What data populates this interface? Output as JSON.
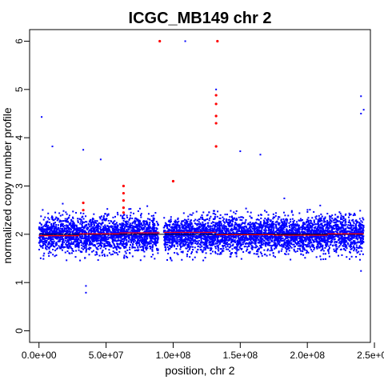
{
  "chart_data": {
    "type": "scatter",
    "title": "ICGC_MB149 chr 2",
    "xlabel": "position, chr 2",
    "ylabel": "normalized copy number profile",
    "xlim": [
      -7000000,
      247000000
    ],
    "ylim": [
      -0.24,
      6.24
    ],
    "x_ticks": [
      0,
      50000000,
      100000000,
      150000000,
      200000000,
      250000000
    ],
    "x_tick_labels": [
      "0.0e+00",
      "5.0e+07",
      "1.0e+08",
      "1.5e+08",
      "2.0e+08",
      "2.5e+08"
    ],
    "y_ticks": [
      0,
      1,
      2,
      3,
      4,
      5,
      6
    ],
    "y_tick_labels": [
      "0",
      "1",
      "2",
      "3",
      "4",
      "5",
      "6"
    ],
    "grid": false,
    "colors": {
      "points": "#0000ff",
      "outliers": "#ff0000",
      "segments": "#ff0000",
      "median_line": "#000000"
    },
    "segments": [
      {
        "x0": 0,
        "x1": 30000000,
        "y": 1.97
      },
      {
        "x0": 30000000,
        "x1": 60000000,
        "y": 2.01
      },
      {
        "x0": 60000000,
        "x1": 90000000,
        "y": 2.03
      },
      {
        "x0": 93000000,
        "x1": 132000000,
        "y": 2.04
      },
      {
        "x0": 132000000,
        "x1": 175000000,
        "y": 1.99
      },
      {
        "x0": 175000000,
        "x1": 215000000,
        "y": 1.98
      },
      {
        "x0": 215000000,
        "x1": 242000000,
        "y": 2.01
      }
    ],
    "median_line": {
      "x0": 0,
      "x1": 242000000,
      "y": 2.0
    },
    "bulk_points": {
      "x_start": 0,
      "x_end": 242000000,
      "gap": [
        89000000,
        93000000
      ],
      "center": 2.0,
      "spread": 0.3,
      "count": 6000
    },
    "outlier_points_blue": [
      {
        "x": 2000000,
        "y": 4.43
      },
      {
        "x": 10000000,
        "y": 3.82
      },
      {
        "x": 33000000,
        "y": 3.75
      },
      {
        "x": 35000000,
        "y": 0.93
      },
      {
        "x": 35000000,
        "y": 0.79
      },
      {
        "x": 46000000,
        "y": 3.55
      },
      {
        "x": 109000000,
        "y": 6.0
      },
      {
        "x": 132000000,
        "y": 5.0
      },
      {
        "x": 132000000,
        "y": 4.45
      },
      {
        "x": 150000000,
        "y": 3.72
      },
      {
        "x": 165000000,
        "y": 3.65
      },
      {
        "x": 240000000,
        "y": 4.86
      },
      {
        "x": 240000000,
        "y": 4.5
      },
      {
        "x": 242000000,
        "y": 4.58
      },
      {
        "x": 240000000,
        "y": 1.24
      }
    ],
    "outlier_points_red": [
      {
        "x": 90000000,
        "y": 6.0
      },
      {
        "x": 133000000,
        "y": 6.0
      },
      {
        "x": 132000000,
        "y": 4.88
      },
      {
        "x": 132000000,
        "y": 4.7
      },
      {
        "x": 132000000,
        "y": 4.45
      },
      {
        "x": 132000000,
        "y": 4.3
      },
      {
        "x": 132000000,
        "y": 3.82
      },
      {
        "x": 100000000,
        "y": 3.1
      },
      {
        "x": 33000000,
        "y": 2.65
      },
      {
        "x": 33000000,
        "y": 2.5
      },
      {
        "x": 63000000,
        "y": 3.0
      },
      {
        "x": 63000000,
        "y": 2.85
      },
      {
        "x": 63000000,
        "y": 2.7
      },
      {
        "x": 63000000,
        "y": 2.55
      },
      {
        "x": 63000000,
        "y": 2.45
      }
    ]
  }
}
